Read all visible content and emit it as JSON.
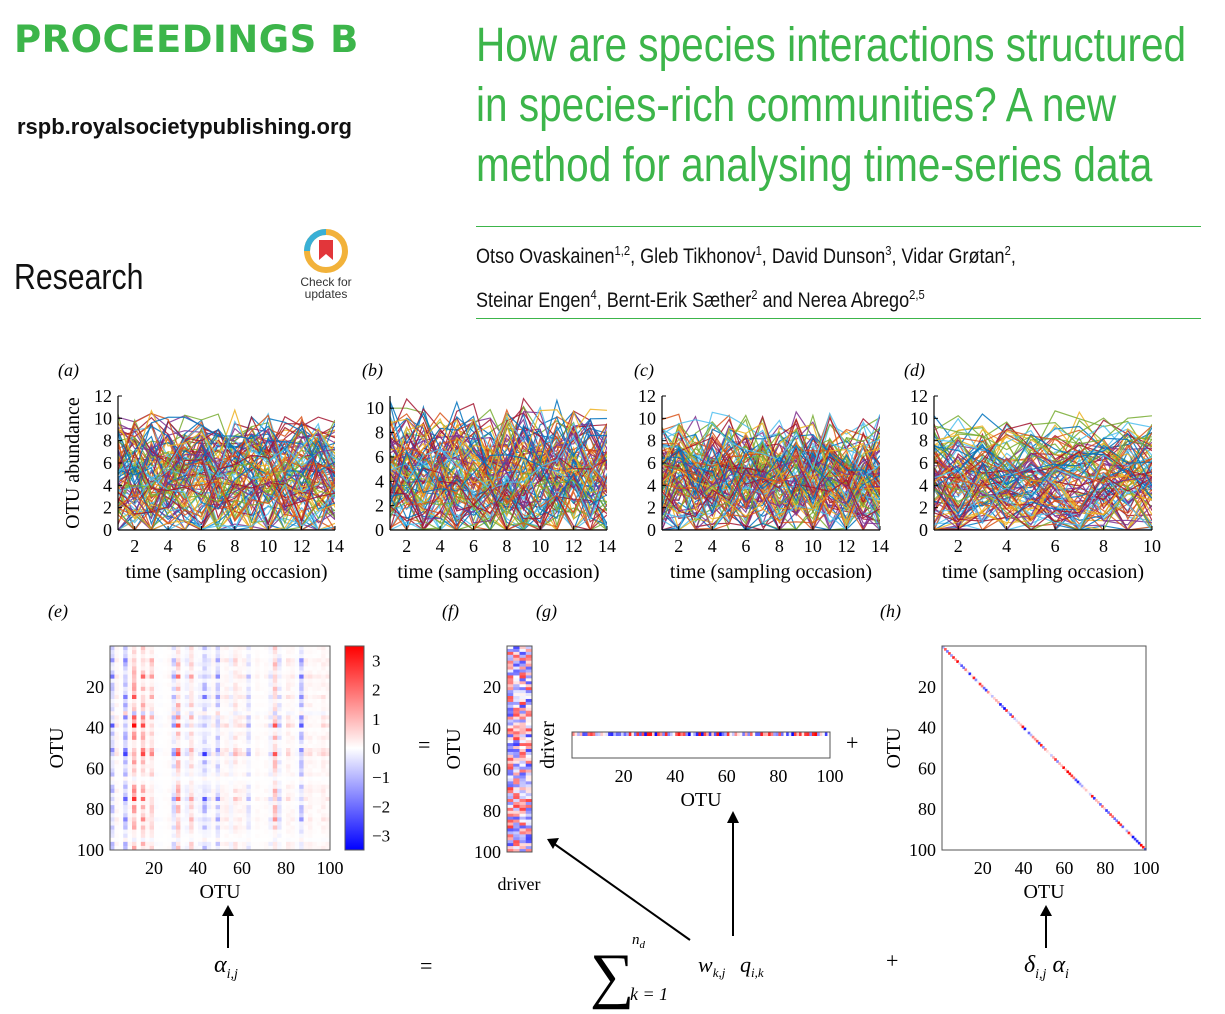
{
  "header": {
    "journal": "PROCEEDINGS B",
    "url": "rspb.royalsocietypublishing.org",
    "section": "Research",
    "check_badge": [
      "Check for",
      "updates"
    ],
    "title": "How are species interactions structured in species-rich communities? A new method for analysing time-series data",
    "authors": [
      {
        "name": "Otso Ovaskainen",
        "aff": "1,2"
      },
      {
        "name": "Gleb Tikhonov",
        "aff": "1"
      },
      {
        "name": "David Dunson",
        "aff": "3"
      },
      {
        "name": "Vidar Grøtan",
        "aff": "2"
      },
      {
        "name": "Steinar Engen",
        "aff": "4"
      },
      {
        "name": "Bernt-Erik Sæther",
        "aff": "2"
      },
      {
        "name": "Nerea Abrego",
        "aff": "2,5"
      }
    ],
    "and_word": "and"
  },
  "colors": {
    "brand_green": "#3cb54a",
    "series_palette": [
      "#0072bd",
      "#d95319",
      "#edb120",
      "#7e2f8e",
      "#77ac30",
      "#4dbeee",
      "#a2142f"
    ]
  },
  "chart_data": [
    {
      "panel": "(a)",
      "type": "line",
      "title": "",
      "xlabel": "time (sampling occasion)",
      "ylabel": "OTU abundance",
      "xlim": [
        1,
        14
      ],
      "ylim": [
        0,
        12
      ],
      "xticks": [
        2,
        4,
        6,
        8,
        10,
        12,
        14
      ],
      "yticks": [
        0,
        2,
        4,
        6,
        8,
        10,
        12
      ],
      "series_note": "~100 OTU abundance trajectories (individual values not readable)",
      "n_series": 100
    },
    {
      "panel": "(b)",
      "type": "line",
      "title": "",
      "xlabel": "time (sampling occasion)",
      "ylabel": "",
      "xlim": [
        1,
        14
      ],
      "ylim": [
        0,
        11
      ],
      "xticks": [
        2,
        4,
        6,
        8,
        10,
        12,
        14
      ],
      "yticks": [
        0,
        2,
        4,
        6,
        8,
        10
      ],
      "series_note": "~100 OTU abundance trajectories (individual values not readable)",
      "n_series": 100
    },
    {
      "panel": "(c)",
      "type": "line",
      "title": "",
      "xlabel": "time (sampling occasion)",
      "ylabel": "",
      "xlim": [
        1,
        14
      ],
      "ylim": [
        0,
        12
      ],
      "xticks": [
        2,
        4,
        6,
        8,
        10,
        12,
        14
      ],
      "yticks": [
        0,
        2,
        4,
        6,
        8,
        10,
        12
      ],
      "series_note": "~100 OTU abundance trajectories (individual values not readable)",
      "n_series": 100
    },
    {
      "panel": "(d)",
      "type": "line",
      "title": "",
      "xlabel": "time (sampling occasion)",
      "ylabel": "",
      "xlim": [
        1,
        10
      ],
      "ylim": [
        0,
        12
      ],
      "xticks": [
        2,
        4,
        6,
        8,
        10
      ],
      "yticks": [
        0,
        2,
        4,
        6,
        8,
        10,
        12
      ],
      "series_note": "~100 OTU abundance trajectories (individual values not readable)",
      "n_series": 100
    },
    {
      "panel": "(e)",
      "type": "heatmap",
      "xlabel": "OTU",
      "ylabel": "OTU",
      "dims": [
        100,
        100
      ],
      "ticks": [
        20,
        40,
        60,
        80,
        100
      ],
      "colorbar": {
        "ticks": [
          3,
          2,
          1,
          0,
          -1,
          -2,
          -3
        ],
        "labels": [
          "3",
          "2",
          "1",
          "0",
          "−1",
          "−2",
          "−3"
        ],
        "range": [
          -3.5,
          3.5
        ]
      },
      "formula": "α_i,j"
    },
    {
      "panel": "(f)",
      "type": "heatmap",
      "xlabel": "driver",
      "ylabel": "OTU",
      "dims": [
        100,
        2
      ],
      "ticks": [
        20,
        40,
        60,
        80,
        100
      ]
    },
    {
      "panel": "(g)",
      "type": "heatmap",
      "xlabel": "OTU",
      "ylabel": "driver",
      "dims": [
        2,
        100
      ],
      "ticks": [
        20,
        40,
        60,
        80,
        100
      ]
    },
    {
      "panel": "(h)",
      "type": "heatmap",
      "xlabel": "OTU",
      "ylabel": "OTU",
      "dims": [
        100,
        100
      ],
      "ticks": [
        20,
        40,
        60,
        80,
        100
      ],
      "note": "diagonal matrix"
    }
  ],
  "equation": {
    "equals": "=",
    "plus": "+",
    "alpha": "α",
    "ij": "i,j",
    "sum": "∑",
    "sum_lower": "k = 1",
    "sum_upper_n": "n",
    "sum_upper_d": "d",
    "w": "w",
    "wk": "k,j",
    "q": "q",
    "qk": "i,k",
    "delta": "δ",
    "i": "i"
  }
}
